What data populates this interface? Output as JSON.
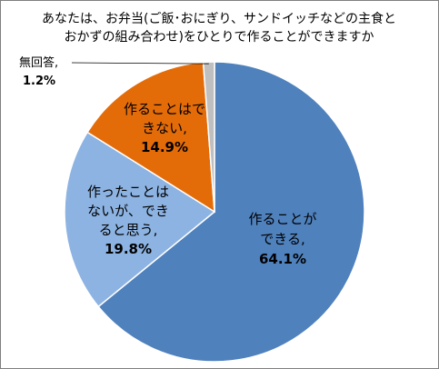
{
  "chart_data": {
    "type": "pie",
    "title_lines": [
      "あなたは、お弁当(ご飯･おにぎり、サンドイッチなどの主食と",
      "おかずの組み合わせ)をひとりで作ることができますか"
    ],
    "slices": [
      {
        "label_lines": [
          "作ることが",
          "できる,"
        ],
        "value": 64.1,
        "value_label": "64.1%",
        "color": "#4f81bd"
      },
      {
        "label_lines": [
          "作ったことは",
          "ないが、でき",
          "ると思う,"
        ],
        "value": 19.8,
        "value_label": "19.8%",
        "color": "#8db3e2"
      },
      {
        "label_lines": [
          "作ることはで",
          "きない,"
        ],
        "value": 14.9,
        "value_label": "14.9%",
        "color": "#e36c09"
      },
      {
        "label_lines": [
          "無回答,"
        ],
        "value": 1.2,
        "value_label": "1.2%",
        "color": "#bfbfbf"
      }
    ],
    "start_angle_deg": 0,
    "direction": "clockwise",
    "legend": "none",
    "border_color": "#ffffff",
    "label_color": "#000000"
  }
}
